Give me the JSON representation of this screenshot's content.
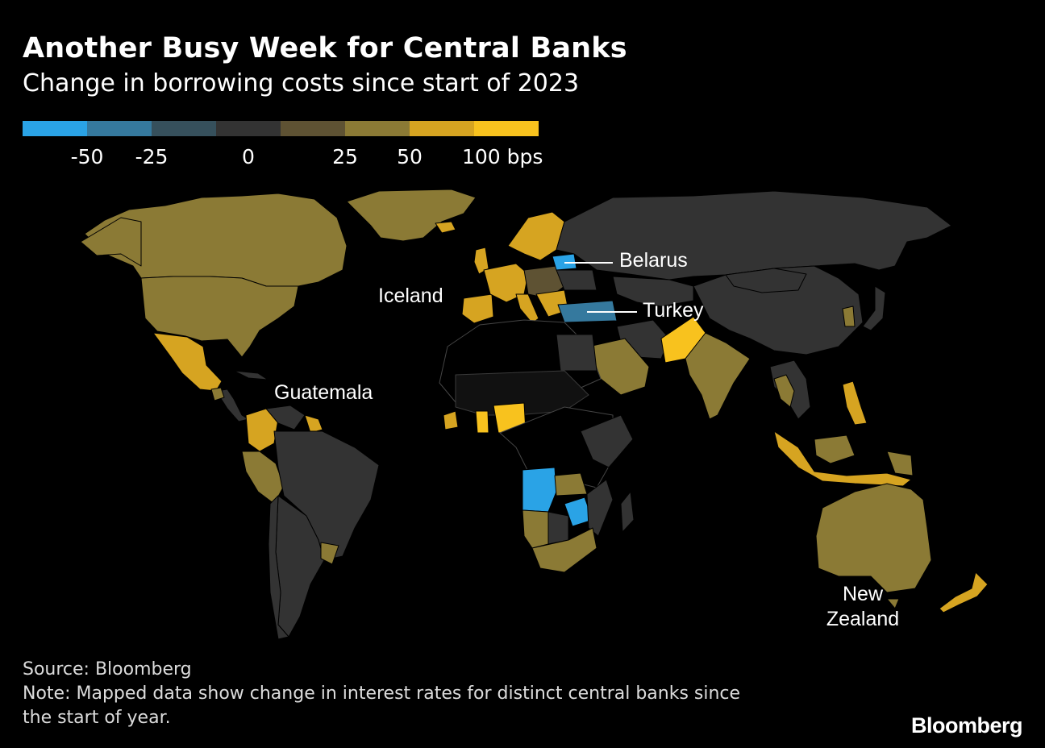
{
  "header": {
    "title": "Another Busy Week for Central Banks",
    "subtitle": "Change in borrowing costs since start of 2023"
  },
  "legend": {
    "colors": [
      "#2aa3e6",
      "#35799e",
      "#36505c",
      "#333333",
      "#5e5233",
      "#8b7a35",
      "#d6a421",
      "#f8c21e"
    ],
    "labels": [
      "-50",
      "-25",
      "0",
      "25",
      "50",
      "100 bps"
    ]
  },
  "map_labels": {
    "belarus": "Belarus",
    "iceland": "Iceland",
    "turkey": "Turkey",
    "guatemala": "Guatemala",
    "new_zealand_line1": "New",
    "new_zealand_line2": "Zealand"
  },
  "footer": {
    "source": "Source: Bloomberg",
    "note_line1": "Note: Mapped data show change in interest rates for distinct central banks since",
    "note_line2": "the start of year.",
    "brand": "Bloomberg"
  }
}
